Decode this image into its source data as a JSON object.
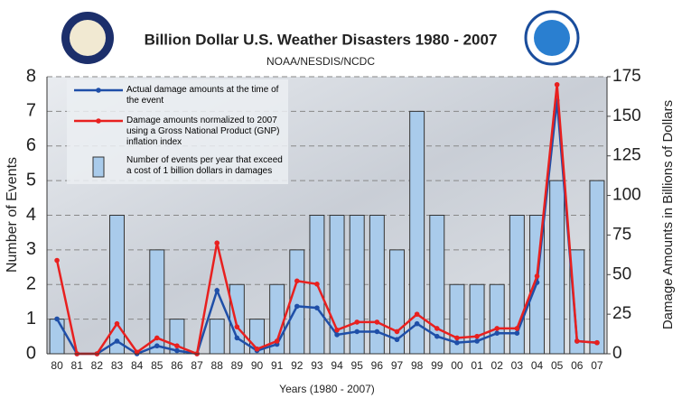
{
  "chart_data": {
    "type": "bar",
    "title": "Billion Dollar U.S. Weather Disasters 1980 - 2007",
    "subtitle": "NOAA/NESDIS/NCDC",
    "x_label": "Years (1980 - 2007)",
    "y_label": "Number of Events",
    "y2_label": "Damage Amounts in Billions of Dollars",
    "categories": [
      "80",
      "81",
      "82",
      "83",
      "84",
      "85",
      "86",
      "87",
      "88",
      "89",
      "90",
      "91",
      "92",
      "93",
      "94",
      "95",
      "96",
      "97",
      "98",
      "99",
      "00",
      "01",
      "02",
      "03",
      "04",
      "05",
      "06",
      "07"
    ],
    "series": [
      {
        "name": "Actual damage amounts at the time of the event",
        "type": "line",
        "axis": "y2",
        "color": "#1f4fa8",
        "values": [
          22,
          0,
          0,
          8,
          0,
          5,
          2,
          0,
          40,
          10,
          2,
          6,
          30,
          29,
          12,
          14,
          14,
          9,
          19,
          11,
          7,
          8,
          13,
          13,
          45,
          160,
          8,
          7
        ]
      },
      {
        "name": "Damage amounts normalized to 2007 using a Gross National Product (GNP) inflation index",
        "type": "line",
        "axis": "y2",
        "color": "#e8201f",
        "values": [
          59,
          0,
          0,
          19,
          1,
          10,
          5,
          0,
          70,
          17,
          3,
          8,
          46,
          44,
          15,
          20,
          20,
          14,
          25,
          16,
          10,
          11,
          16,
          16,
          49,
          170,
          8,
          7
        ]
      },
      {
        "name": "Number of events per year that exceed a cost of 1 billion dollars in damages",
        "type": "bar",
        "axis": "y",
        "color": "#a9cbeb",
        "values": [
          1,
          0,
          0,
          4,
          0,
          3,
          1,
          0,
          1,
          2,
          1,
          2,
          3,
          4,
          4,
          4,
          4,
          3,
          7,
          4,
          2,
          2,
          2,
          4,
          4,
          5,
          3,
          5
        ]
      }
    ],
    "ylim": [
      0,
      8
    ],
    "yticks": [
      0,
      1,
      2,
      3,
      4,
      5,
      6,
      7,
      8
    ],
    "y2lim": [
      0,
      175
    ],
    "y2ticks": [
      0,
      25,
      50,
      75,
      100,
      125,
      150,
      175
    ],
    "grid": true,
    "legend": "upper left"
  }
}
